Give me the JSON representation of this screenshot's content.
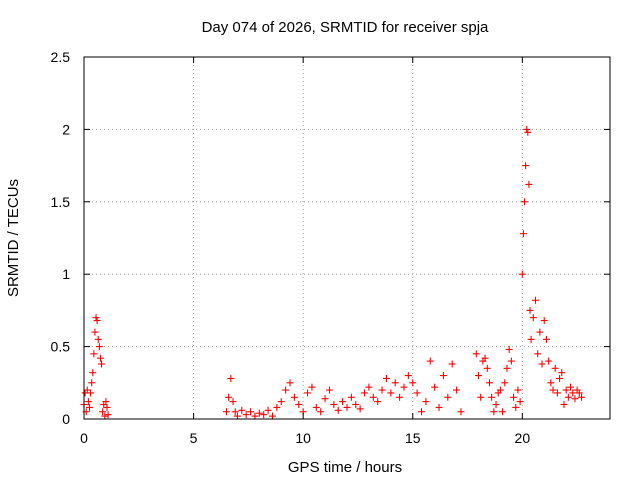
{
  "chart_data": {
    "type": "scatter",
    "title": "Day 074 of 2026, SRMTID for receiver spja",
    "xlabel": "GPS time / hours",
    "ylabel": "SRMTID / TECUs",
    "xlim": [
      0,
      24
    ],
    "ylim": [
      0,
      2.5
    ],
    "xticks": [
      "0",
      "5",
      "10",
      "15",
      "20"
    ],
    "xtick_values": [
      0,
      5,
      10,
      15,
      20
    ],
    "yticks": [
      "0",
      "0.5",
      "1",
      "1.5",
      "2",
      "2.5"
    ],
    "ytick_values": [
      0,
      0.5,
      1,
      1.5,
      2,
      2.5
    ],
    "grid": true,
    "marker": "+",
    "color": "#ff0000",
    "series": [
      {
        "name": "SRMTID",
        "x": [
          0.0,
          0.05,
          0.1,
          0.15,
          0.2,
          0.25,
          0.3,
          0.35,
          0.4,
          0.45,
          0.5,
          0.55,
          0.6,
          0.65,
          0.7,
          0.75,
          0.8,
          0.85,
          0.9,
          0.95,
          1.0,
          1.05,
          1.1,
          6.5,
          6.6,
          6.7,
          6.8,
          6.9,
          7.0,
          7.2,
          7.4,
          7.6,
          7.8,
          8.0,
          8.2,
          8.4,
          8.6,
          8.8,
          9.0,
          9.2,
          9.4,
          9.6,
          9.8,
          10.0,
          10.2,
          10.4,
          10.6,
          10.8,
          11.0,
          11.2,
          11.4,
          11.6,
          11.8,
          12.0,
          12.2,
          12.4,
          12.6,
          12.8,
          13.0,
          13.2,
          13.4,
          13.6,
          13.8,
          14.0,
          14.2,
          14.4,
          14.6,
          14.8,
          15.0,
          15.2,
          15.4,
          15.6,
          15.8,
          16.0,
          16.2,
          16.4,
          16.6,
          16.8,
          17.0,
          17.2,
          17.9,
          18.0,
          18.1,
          18.2,
          18.3,
          18.4,
          18.5,
          18.6,
          18.7,
          18.8,
          18.9,
          19.0,
          19.1,
          19.2,
          19.3,
          19.4,
          19.5,
          19.6,
          19.7,
          19.8,
          19.9,
          20.0,
          20.05,
          20.1,
          20.15,
          20.2,
          20.25,
          20.3,
          20.35,
          20.4,
          20.5,
          20.6,
          20.7,
          20.8,
          20.9,
          21.0,
          21.1,
          21.2,
          21.3,
          21.4,
          21.5,
          21.6,
          21.7,
          21.8,
          21.9,
          22.0,
          22.1,
          22.2,
          22.3,
          22.4,
          22.5,
          22.6,
          22.7
        ],
        "y": [
          0.1,
          0.18,
          0.05,
          0.2,
          0.12,
          0.08,
          0.18,
          0.25,
          0.32,
          0.45,
          0.6,
          0.7,
          0.68,
          0.55,
          0.5,
          0.42,
          0.38,
          0.05,
          0.1,
          0.02,
          0.12,
          0.08,
          0.03,
          0.05,
          0.15,
          0.28,
          0.12,
          0.05,
          0.02,
          0.06,
          0.03,
          0.05,
          0.02,
          0.04,
          0.03,
          0.06,
          0.02,
          0.08,
          0.12,
          0.2,
          0.25,
          0.15,
          0.1,
          0.05,
          0.18,
          0.22,
          0.08,
          0.05,
          0.14,
          0.2,
          0.1,
          0.06,
          0.12,
          0.08,
          0.15,
          0.1,
          0.07,
          0.18,
          0.22,
          0.15,
          0.12,
          0.2,
          0.28,
          0.18,
          0.25,
          0.15,
          0.22,
          0.3,
          0.25,
          0.18,
          0.05,
          0.12,
          0.4,
          0.22,
          0.08,
          0.3,
          0.15,
          0.38,
          0.2,
          0.05,
          0.45,
          0.3,
          0.15,
          0.4,
          0.42,
          0.35,
          0.25,
          0.15,
          0.05,
          0.1,
          0.18,
          0.2,
          0.05,
          0.25,
          0.35,
          0.48,
          0.4,
          0.15,
          0.08,
          0.2,
          0.12,
          1.0,
          1.28,
          1.5,
          1.75,
          2.0,
          1.98,
          1.62,
          0.75,
          0.55,
          0.7,
          0.82,
          0.45,
          0.6,
          0.38,
          0.68,
          0.55,
          0.4,
          0.25,
          0.2,
          0.35,
          0.18,
          0.28,
          0.32,
          0.1,
          0.2,
          0.15,
          0.22,
          0.18,
          0.14,
          0.2,
          0.18,
          0.15
        ]
      }
    ]
  }
}
